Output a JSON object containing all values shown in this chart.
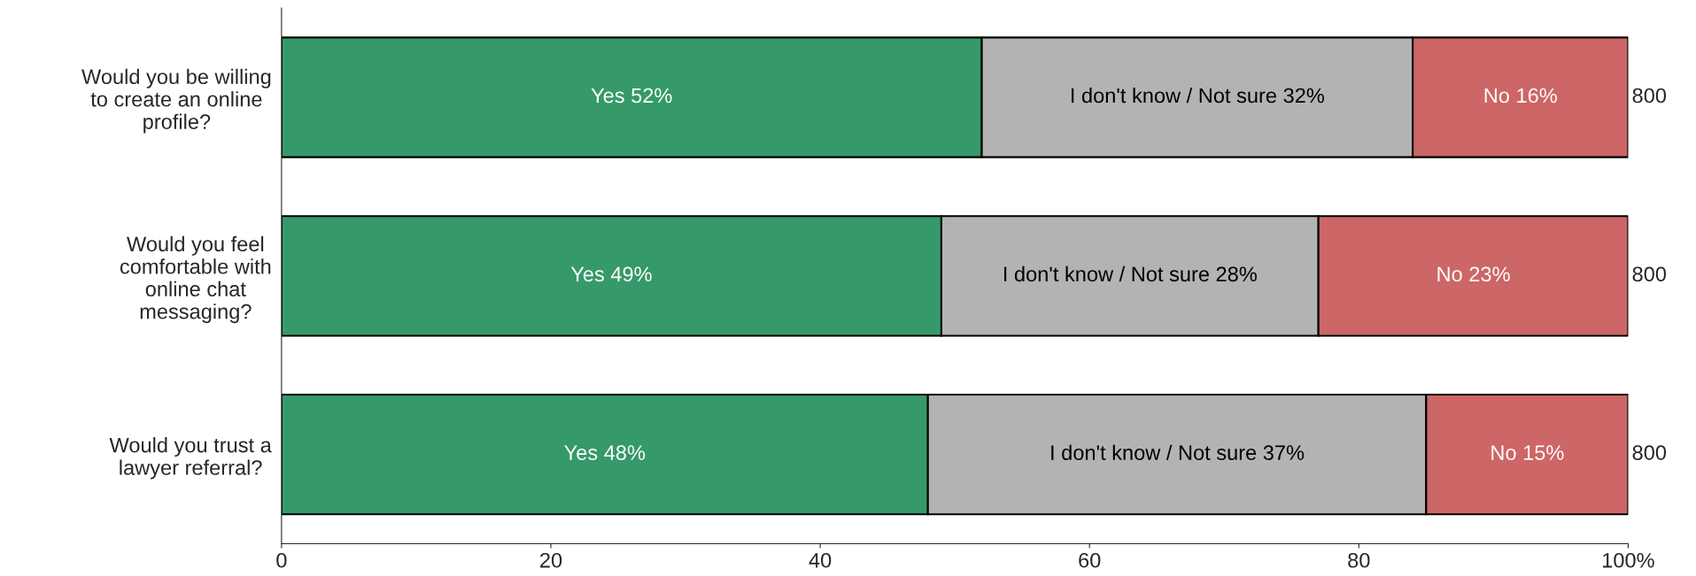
{
  "chart_data": {
    "type": "bar",
    "orientation": "horizontal",
    "stacked": true,
    "categories": [
      "Would you be willing\nto create an online\nprofile?",
      "Would you feel\ncomfortable with\nonline chat\nmessaging?",
      "Would you trust a\nlawyer referral?"
    ],
    "series": [
      {
        "color": "#36996a",
        "values": [
          52,
          49,
          48
        ],
        "value_labels": [
          "Yes 52%",
          "Yes 49%",
          "Yes 48%"
        ]
      },
      {
        "color": "#b3b3b3",
        "values": [
          32,
          28,
          37
        ],
        "value_labels": [
          "I don't know / Not sure 32%",
          "I don't know / Not sure 28%",
          "I don't know / Not sure 37%"
        ]
      },
      {
        "color": "#cd6666",
        "values": [
          16,
          23,
          15
        ],
        "value_labels": [
          "No 16%",
          "No 23%",
          "No 15%"
        ]
      }
    ],
    "annotations": [
      "800",
      "800",
      "800"
    ],
    "xlim": [
      0,
      100
    ],
    "xticks": [
      0,
      20,
      40,
      60,
      80,
      {
        "value": 100,
        "label": "100%"
      }
    ],
    "grid": false,
    "legend": false
  }
}
